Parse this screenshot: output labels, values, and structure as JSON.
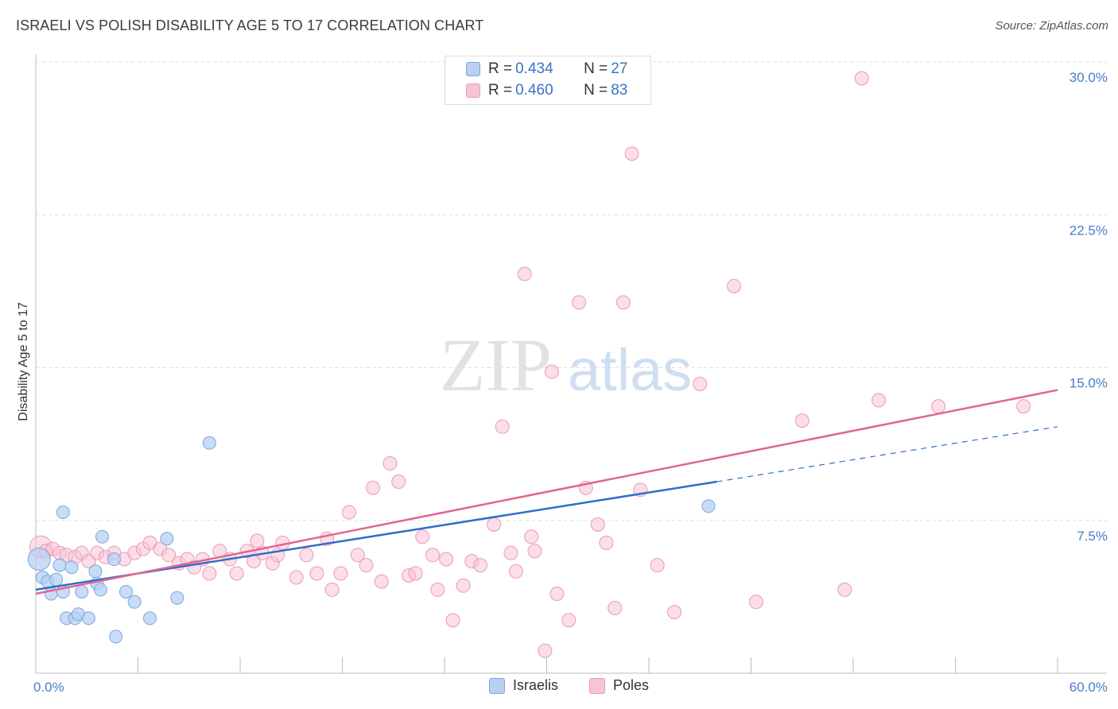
{
  "header": {
    "title": "ISRAELI VS POLISH DISABILITY AGE 5 TO 17 CORRELATION CHART",
    "source": "Source: ZipAtlas.com"
  },
  "legend": {
    "israelis": {
      "r_label": "R = ",
      "r_value": "0.434",
      "n_label": "N = ",
      "n_value": "27"
    },
    "poles": {
      "r_label": "R = ",
      "r_value": "0.460",
      "n_label": "N = ",
      "n_value": "83"
    }
  },
  "colors": {
    "israelis_fill": "#b7d0f3",
    "israelis_stroke": "#7aa6e0",
    "israelis_line": "#2f6fc9",
    "poles_fill": "#f8c3d3",
    "poles_stroke": "#ec9ab4",
    "poles_line": "#e0668f",
    "tick_text": "#4a7cc9",
    "grid": "#dddddd"
  },
  "watermark": {
    "zip": "ZIP",
    "atlas": "atlas"
  },
  "chart_data": {
    "type": "scatter",
    "ylabel": "Disability Age 5 to 17",
    "xlim": [
      0,
      60
    ],
    "ylim": [
      0,
      30
    ],
    "x_tick_labels": [
      "0.0%",
      "60.0%"
    ],
    "y_ticks": [
      7.5,
      15,
      22.5,
      30
    ],
    "y_tick_labels": [
      "7.5%",
      "15.0%",
      "22.5%",
      "30.0%"
    ],
    "grid": true,
    "legend_position": "top-center",
    "series": [
      {
        "name": "Israelis",
        "trend": {
          "x": [
            0,
            40
          ],
          "y": [
            4.1,
            9.4
          ],
          "dashed_to": [
            60,
            12.1
          ]
        },
        "points": [
          [
            0.2,
            5.6
          ],
          [
            0.4,
            4.7
          ],
          [
            0.7,
            4.5
          ],
          [
            0.9,
            3.9
          ],
          [
            1.2,
            4.6
          ],
          [
            1.4,
            5.3
          ],
          [
            1.6,
            7.9
          ],
          [
            1.6,
            4.0
          ],
          [
            1.8,
            2.7
          ],
          [
            2.1,
            5.2
          ],
          [
            2.3,
            2.7
          ],
          [
            2.5,
            2.9
          ],
          [
            2.7,
            4.0
          ],
          [
            3.1,
            2.7
          ],
          [
            3.5,
            5.0
          ],
          [
            3.6,
            4.4
          ],
          [
            3.8,
            4.1
          ],
          [
            3.9,
            6.7
          ],
          [
            4.6,
            5.6
          ],
          [
            4.7,
            1.8
          ],
          [
            5.3,
            4.0
          ],
          [
            5.8,
            3.5
          ],
          [
            6.7,
            2.7
          ],
          [
            7.7,
            6.6
          ],
          [
            8.3,
            3.7
          ],
          [
            10.2,
            11.3
          ],
          [
            39.5,
            8.2
          ]
        ]
      },
      {
        "name": "Poles",
        "trend": {
          "x": [
            0,
            60
          ],
          "y": [
            3.9,
            13.9
          ]
        },
        "points": [
          [
            0.3,
            6.2
          ],
          [
            0.6,
            6.0
          ],
          [
            1.0,
            6.1
          ],
          [
            1.4,
            5.9
          ],
          [
            1.8,
            5.8
          ],
          [
            2.3,
            5.7
          ],
          [
            2.7,
            5.9
          ],
          [
            3.1,
            5.5
          ],
          [
            3.6,
            5.9
          ],
          [
            4.1,
            5.7
          ],
          [
            4.6,
            5.9
          ],
          [
            5.2,
            5.6
          ],
          [
            5.8,
            5.9
          ],
          [
            6.3,
            6.1
          ],
          [
            6.7,
            6.4
          ],
          [
            7.3,
            6.1
          ],
          [
            7.8,
            5.8
          ],
          [
            8.4,
            5.4
          ],
          [
            8.9,
            5.6
          ],
          [
            9.3,
            5.2
          ],
          [
            9.8,
            5.6
          ],
          [
            10.2,
            4.9
          ],
          [
            10.8,
            6.0
          ],
          [
            11.4,
            5.6
          ],
          [
            11.8,
            4.9
          ],
          [
            12.4,
            6.0
          ],
          [
            12.8,
            5.5
          ],
          [
            13.0,
            6.5
          ],
          [
            13.3,
            5.9
          ],
          [
            13.9,
            5.4
          ],
          [
            14.2,
            5.8
          ],
          [
            14.5,
            6.4
          ],
          [
            15.3,
            4.7
          ],
          [
            15.9,
            5.8
          ],
          [
            16.5,
            4.9
          ],
          [
            17.1,
            6.6
          ],
          [
            17.4,
            4.1
          ],
          [
            17.9,
            4.9
          ],
          [
            18.4,
            7.9
          ],
          [
            18.9,
            5.8
          ],
          [
            19.4,
            5.3
          ],
          [
            19.8,
            9.1
          ],
          [
            20.3,
            4.5
          ],
          [
            20.8,
            10.3
          ],
          [
            21.3,
            9.4
          ],
          [
            21.9,
            4.8
          ],
          [
            22.3,
            4.9
          ],
          [
            22.7,
            6.7
          ],
          [
            23.3,
            5.8
          ],
          [
            23.6,
            4.1
          ],
          [
            24.1,
            5.6
          ],
          [
            24.5,
            2.6
          ],
          [
            25.1,
            4.3
          ],
          [
            25.6,
            5.5
          ],
          [
            26.1,
            5.3
          ],
          [
            26.9,
            7.3
          ],
          [
            27.4,
            12.1
          ],
          [
            27.9,
            5.9
          ],
          [
            28.2,
            5.0
          ],
          [
            28.7,
            19.6
          ],
          [
            29.1,
            6.7
          ],
          [
            29.3,
            6.0
          ],
          [
            29.9,
            1.1
          ],
          [
            30.3,
            14.8
          ],
          [
            30.6,
            3.9
          ],
          [
            31.3,
            2.6
          ],
          [
            31.9,
            18.2
          ],
          [
            32.3,
            9.1
          ],
          [
            33.0,
            7.3
          ],
          [
            33.5,
            6.4
          ],
          [
            34.0,
            3.2
          ],
          [
            34.5,
            18.2
          ],
          [
            35.0,
            25.5
          ],
          [
            35.5,
            9.0
          ],
          [
            36.5,
            5.3
          ],
          [
            37.5,
            3.0
          ],
          [
            39.0,
            14.2
          ],
          [
            41.0,
            19.0
          ],
          [
            42.3,
            3.5
          ],
          [
            45.0,
            12.4
          ],
          [
            47.5,
            4.1
          ],
          [
            48.5,
            29.2
          ],
          [
            49.5,
            13.4
          ],
          [
            53.0,
            13.1
          ],
          [
            58.0,
            13.1
          ]
        ]
      }
    ]
  }
}
